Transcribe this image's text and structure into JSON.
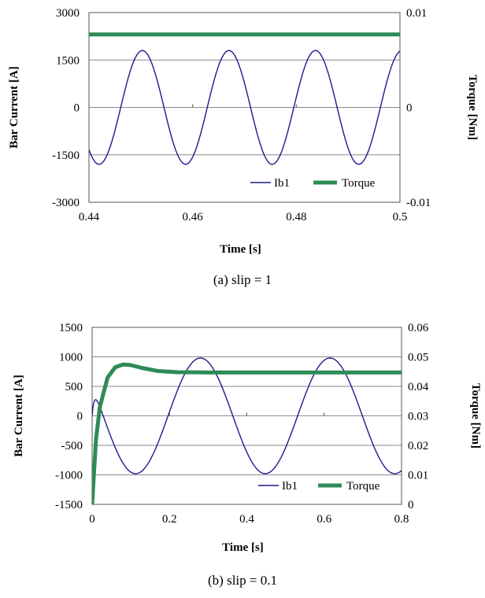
{
  "chart_data": [
    {
      "type": "line",
      "caption": "(a)  slip = 1",
      "xlabel": "Time [s]",
      "ylabel_left": "Bar Current  [A]",
      "ylabel_right": "Torque [Nm]",
      "xlim": [
        0.44,
        0.5
      ],
      "xticks": [
        0.44,
        0.46,
        0.48,
        0.5
      ],
      "xtick_labels": [
        "0.44",
        "0.46",
        "0.48",
        "0.5"
      ],
      "ylim_left": [
        -3000,
        3000
      ],
      "yticks_left": [
        -3000,
        -1500,
        0,
        1500,
        3000
      ],
      "ytick_labels_left": [
        "-3000",
        "-1500",
        "0",
        "1500",
        "3000"
      ],
      "ylim_right": [
        -0.01,
        0.01
      ],
      "yticks_right": [
        -0.01,
        0,
        0.01
      ],
      "ytick_labels_right": [
        "-0.01",
        "0",
        "0.01"
      ],
      "grid": "horizontal",
      "legend_position": "bottom-right",
      "series": [
        {
          "name": "Ib1",
          "axis": "left",
          "color": "#1c1c8c",
          "style": "sinusoid",
          "amplitude": 1800,
          "period": 0.0167,
          "peak_at": 0.4503,
          "offset": 0
        },
        {
          "name": "Torque",
          "axis": "right",
          "color": "#2e8b57",
          "style": "constant",
          "value": 0.0077
        }
      ]
    },
    {
      "type": "line",
      "caption": "(b)  slip = 0.1",
      "xlabel": "Time [s]",
      "ylabel_left": "Bar Current [A]",
      "ylabel_right": "Torque [Nm]",
      "xlim": [
        0,
        0.8
      ],
      "xticks": [
        0,
        0.2,
        0.4,
        0.6,
        0.8
      ],
      "xtick_labels": [
        "0",
        "0.2",
        "0.4",
        "0.6",
        "0.8"
      ],
      "ylim_left": [
        -1500,
        1500
      ],
      "yticks_left": [
        -1500,
        -1000,
        -500,
        0,
        500,
        1000,
        1500
      ],
      "ytick_labels_left": [
        "-1500",
        "-1000",
        "-500",
        "0",
        "500",
        "1000",
        "1500"
      ],
      "ylim_right": [
        0,
        0.06
      ],
      "yticks_right": [
        0,
        0.01,
        0.02,
        0.03,
        0.04,
        0.05,
        0.06
      ],
      "ytick_labels_right": [
        "0",
        "0.01",
        "0.02",
        "0.03",
        "0.04",
        "0.05",
        "0.06"
      ],
      "grid": "horizontal",
      "legend_position": "bottom-right",
      "series": [
        {
          "name": "Ib1",
          "axis": "left",
          "color": "#1c1c8c",
          "style": "decaying-start sinusoid",
          "amplitude": 980,
          "period": 0.335,
          "peak_at": 0.28,
          "offset": 0
        },
        {
          "name": "Torque",
          "axis": "right",
          "color": "#2e8b57",
          "style": "step response",
          "x": [
            0,
            0.01,
            0.02,
            0.04,
            0.06,
            0.08,
            0.1,
            0.13,
            0.17,
            0.22,
            0.3,
            0.5,
            0.8
          ],
          "values": [
            0,
            0.022,
            0.033,
            0.043,
            0.0465,
            0.0474,
            0.0472,
            0.0462,
            0.0452,
            0.0448,
            0.0447,
            0.0447,
            0.0447
          ]
        }
      ]
    }
  ]
}
